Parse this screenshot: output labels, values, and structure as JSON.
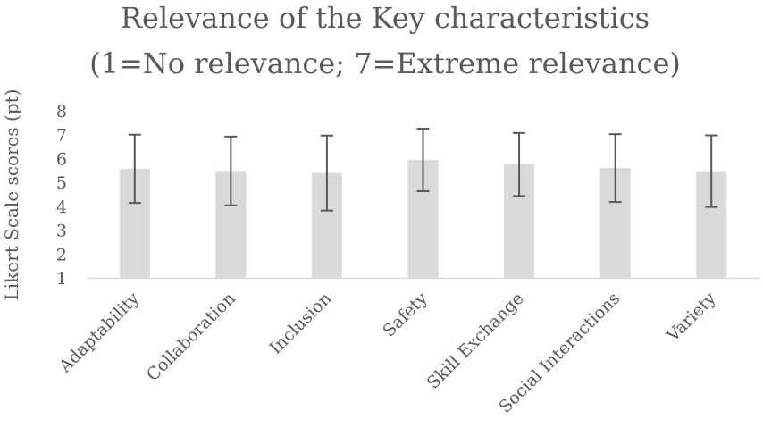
{
  "chart_data": {
    "type": "bar",
    "title": [
      "Relevance of the Key characteristics",
      "(1=No relevance; 7=Extreme relevance)"
    ],
    "xlabel": "",
    "ylabel": "Likert Scale scores (pt)",
    "ylim": [
      1,
      8
    ],
    "yticks": [
      1,
      2,
      3,
      4,
      5,
      6,
      7,
      8
    ],
    "grid": false,
    "categories": [
      "Adaptability",
      "Collaboration",
      "Inclusion",
      "Safety",
      "Skill Exchange",
      "Social Interactions",
      "Variety"
    ],
    "values": [
      5.57,
      5.48,
      5.39,
      5.94,
      5.75,
      5.6,
      5.47
    ],
    "error": [
      1.43,
      1.44,
      1.57,
      1.31,
      1.32,
      1.42,
      1.5
    ],
    "colors": {
      "bar": "#d9d9d9",
      "errorbar": "#595959",
      "axis": "#d9d9d9",
      "text": "#595959"
    }
  }
}
